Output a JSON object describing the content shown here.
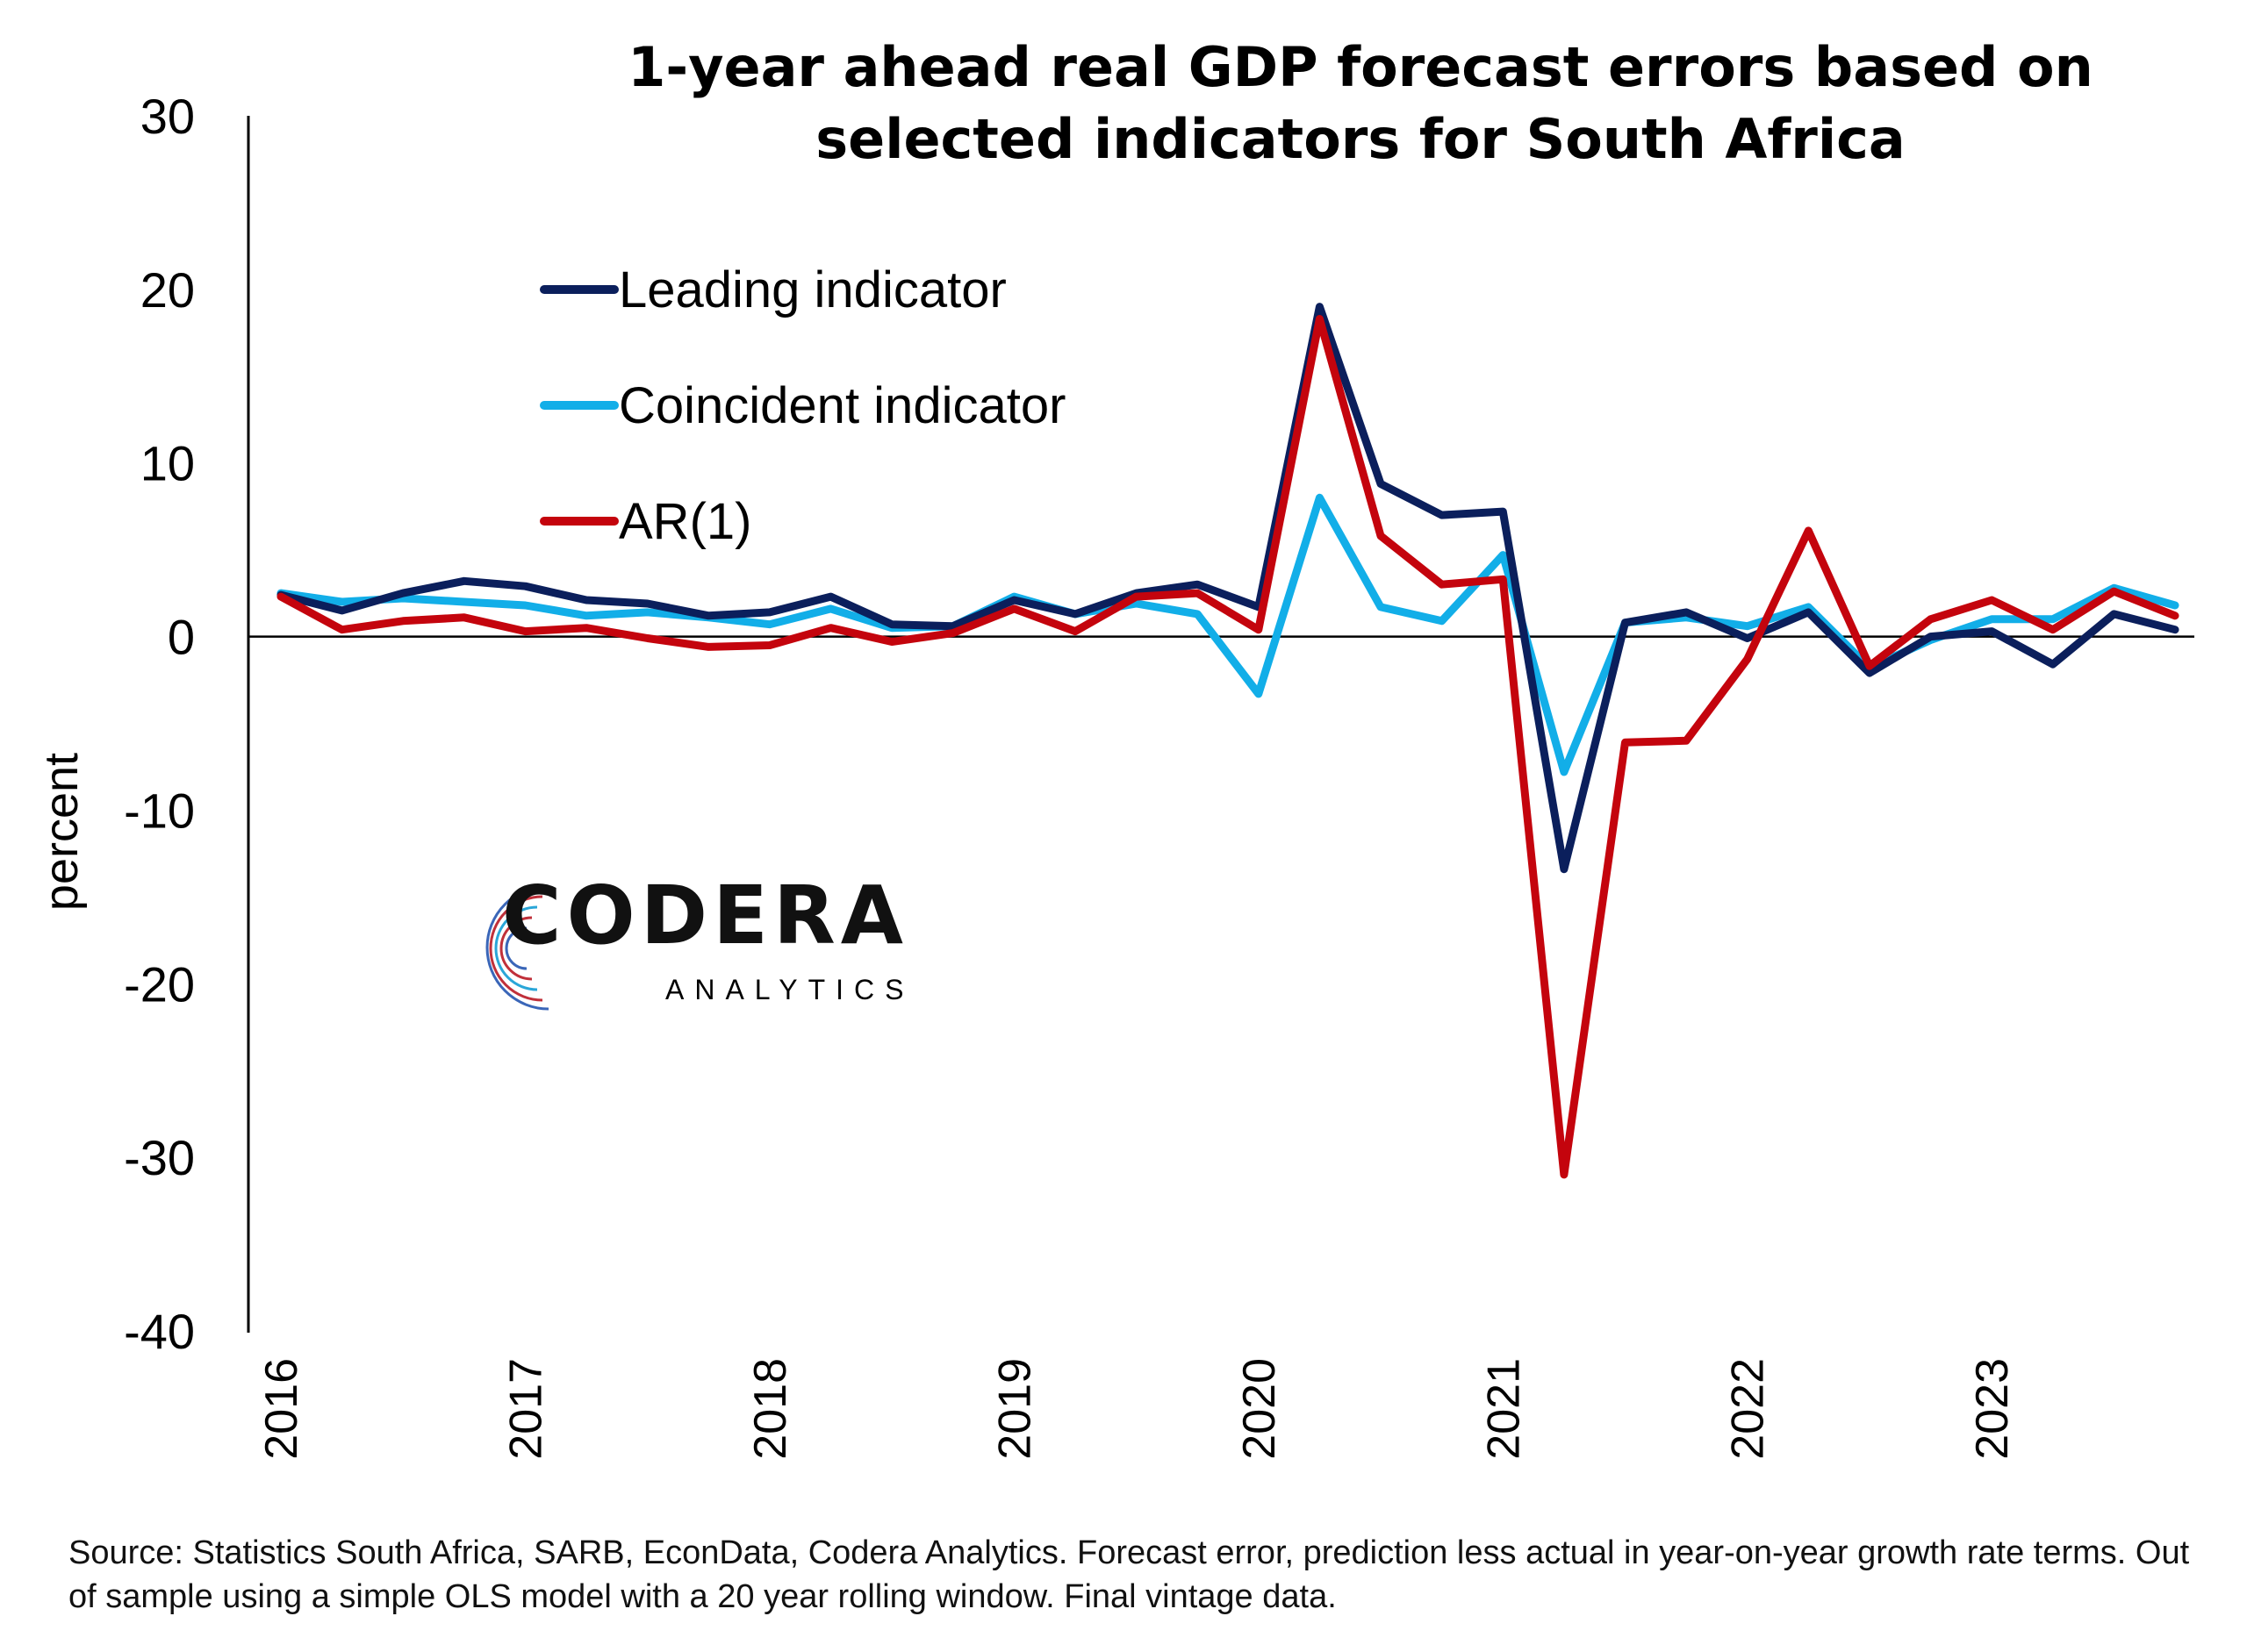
{
  "chart_data": {
    "type": "line",
    "title": "1-year ahead real GDP forecast errors based on selected indicators for South Africa",
    "ylabel": "percent",
    "xlabel": "",
    "ylim": [
      -40,
      30
    ],
    "y_ticks": [
      "30",
      "20",
      "10",
      "0",
      "-10",
      "-20",
      "-30",
      "-40"
    ],
    "x_tick_labels": [
      "2016",
      "2017",
      "2018",
      "2019",
      "2020",
      "2021",
      "2022",
      "2023"
    ],
    "x": [
      "2016Q1",
      "2016Q2",
      "2016Q3",
      "2016Q4",
      "2017Q1",
      "2017Q2",
      "2017Q3",
      "2017Q4",
      "2018Q1",
      "2018Q2",
      "2018Q3",
      "2018Q4",
      "2019Q1",
      "2019Q2",
      "2019Q3",
      "2019Q4",
      "2020Q1",
      "2020Q2",
      "2020Q3",
      "2020Q4",
      "2021Q1",
      "2021Q2",
      "2021Q3",
      "2021Q4",
      "2022Q1",
      "2022Q2",
      "2022Q3",
      "2022Q4",
      "2023Q1",
      "2023Q2",
      "2023Q3",
      "2023Q4"
    ],
    "legend_position": "top-left",
    "grid": false,
    "series": [
      {
        "name": "Leading indicator",
        "color": "#0b1f5c",
        "values": [
          2.4,
          1.5,
          2.5,
          3.2,
          2.9,
          2.1,
          1.9,
          1.2,
          1.4,
          2.3,
          0.7,
          0.6,
          2.1,
          1.3,
          2.5,
          3.0,
          1.7,
          19.0,
          8.8,
          7.0,
          7.2,
          -13.4,
          0.8,
          1.4,
          -0.1,
          1.4,
          -2.1,
          0.0,
          0.3,
          -1.6,
          1.3,
          0.4
        ]
      },
      {
        "name": "Coincident indicator",
        "color": "#12aee8",
        "values": [
          2.5,
          2.0,
          2.2,
          2.0,
          1.8,
          1.2,
          1.4,
          1.1,
          0.7,
          1.6,
          0.5,
          0.6,
          2.3,
          1.3,
          1.9,
          1.3,
          -3.3,
          8.0,
          1.7,
          0.9,
          4.7,
          -7.8,
          0.8,
          1.1,
          0.6,
          1.7,
          -1.8,
          -0.2,
          1.0,
          1.0,
          2.8,
          1.8
        ]
      },
      {
        "name": "AR(1)",
        "color": "#c4040d",
        "values": [
          2.3,
          0.4,
          0.9,
          1.1,
          0.3,
          0.5,
          -0.1,
          -0.6,
          -0.5,
          0.5,
          -0.3,
          0.2,
          1.6,
          0.3,
          2.3,
          2.5,
          0.4,
          18.3,
          5.8,
          3.0,
          3.3,
          -31.0,
          -6.1,
          -6.0,
          -1.3,
          6.1,
          -1.7,
          1.0,
          2.1,
          0.4,
          2.6,
          1.2
        ]
      }
    ]
  },
  "logo": {
    "main": "CODERA",
    "sub": "ANALYTICS"
  },
  "source_note": "Source: Statistics South Africa, SARB, EconData, Codera Analytics. Forecast error, prediction less actual in year-on-year growth rate terms. Out of sample using a simple OLS model with a 20 year rolling window. Final vintage data."
}
